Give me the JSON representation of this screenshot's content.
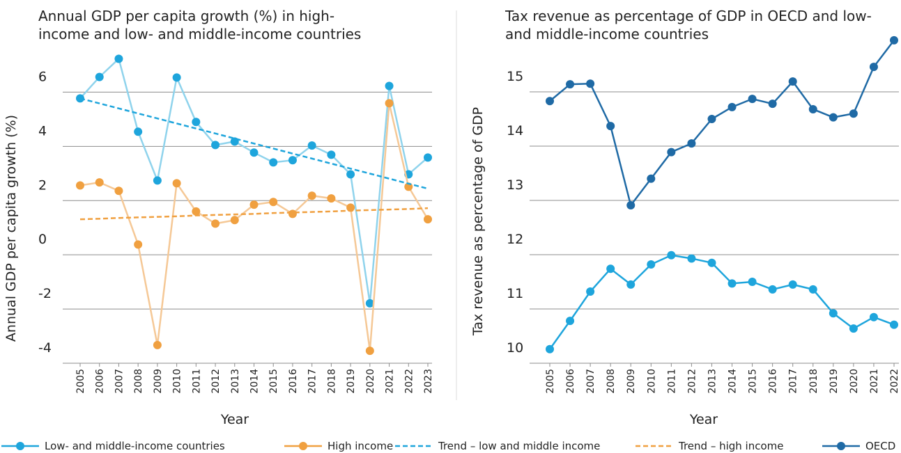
{
  "chart_data": [
    {
      "type": "line",
      "title": "Annual GDP per capita growth (%) in high-income and low- and middle-income countries",
      "x_label": "Year",
      "y_label": "Annual GDP per capita growth (%)",
      "categories": [
        "2005",
        "2006",
        "2007",
        "2008",
        "2009",
        "2010",
        "2011",
        "2012",
        "2013",
        "2014",
        "2015",
        "2016",
        "2017",
        "2018",
        "2019",
        "2020",
        "2021",
        "2022",
        "2023"
      ],
      "ylim": [
        -4,
        7.5
      ],
      "yticks": [
        -4,
        -2,
        0,
        2,
        4,
        6
      ],
      "grid": true,
      "series": [
        {
          "name": "Low- and middle-income countries",
          "color": "#8fd3ec",
          "marker_color": "#1ea5dc",
          "values": [
            5.77,
            6.56,
            7.23,
            4.54,
            2.74,
            6.54,
            4.9,
            4.05,
            4.18,
            3.77,
            3.41,
            3.49,
            4.03,
            3.69,
            2.97,
            -1.79,
            6.23,
            2.97,
            3.59
          ]
        },
        {
          "name": "High income",
          "color": "#f5c896",
          "marker_color": "#f0a040",
          "values": [
            2.56,
            2.67,
            2.36,
            0.38,
            -3.33,
            2.64,
            1.6,
            1.15,
            1.28,
            1.85,
            1.95,
            1.51,
            2.18,
            2.08,
            1.74,
            -3.54,
            5.59,
            2.51,
            1.31
          ]
        },
        {
          "name": "Trend – low and middle income",
          "color": "#1ea5dc",
          "dashed": true,
          "markers": false,
          "values": [
            5.77,
            5.585,
            5.4,
            5.215,
            5.03,
            4.845,
            4.66,
            4.475,
            4.29,
            4.105,
            3.92,
            3.735,
            3.55,
            3.365,
            3.18,
            2.995,
            2.81,
            2.625,
            2.44
          ]
        },
        {
          "name": "Trend – high income",
          "color": "#f0a040",
          "dashed": true,
          "markers": false,
          "values": [
            1.31,
            1.33,
            1.36,
            1.38,
            1.4,
            1.42,
            1.45,
            1.47,
            1.49,
            1.51,
            1.54,
            1.56,
            1.58,
            1.6,
            1.63,
            1.65,
            1.67,
            1.69,
            1.72
          ]
        }
      ]
    },
    {
      "type": "line",
      "title": "Tax revenue as percentage of GDP in OECD and low- and middle-income countries",
      "x_label": "Year",
      "y_label": "Tax revenue as percentage of GDP",
      "categories": [
        "2005",
        "2006",
        "2007",
        "2008",
        "2009",
        "2010",
        "2011",
        "2012",
        "2013",
        "2014",
        "2015",
        "2016",
        "2017",
        "2018",
        "2019",
        "2020",
        "2021",
        "2022"
      ],
      "ylim": [
        10,
        16
      ],
      "yticks": [
        10,
        11,
        12,
        13,
        14,
        15
      ],
      "grid": true,
      "series": [
        {
          "name": "OECD",
          "color": "#1f6aa5",
          "marker_color": "#1f6aa5",
          "values": [
            14.83,
            15.14,
            15.15,
            14.37,
            12.91,
            13.4,
            13.89,
            14.05,
            14.5,
            14.72,
            14.87,
            14.78,
            15.19,
            14.68,
            14.53,
            14.6,
            15.46,
            15.95
          ]
        },
        {
          "color": "#1ea5dc",
          "marker_color": "#1ea5dc",
          "values": [
            10.26,
            10.78,
            11.32,
            11.74,
            11.45,
            11.82,
            11.99,
            11.93,
            11.85,
            11.47,
            11.5,
            11.36,
            11.45,
            11.36,
            10.92,
            10.64,
            10.85,
            10.71
          ]
        }
      ]
    }
  ]
}
